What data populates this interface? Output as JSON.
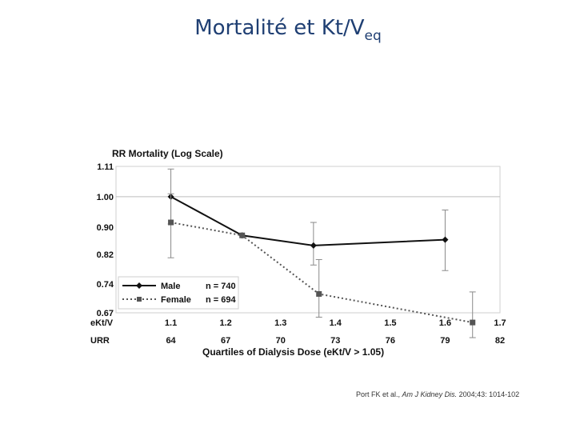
{
  "slide": {
    "title_main": "Mortalité et Kt/V",
    "title_sub": "eq"
  },
  "chart_data": {
    "type": "line",
    "title": "RR Mortality (Log Scale)",
    "xlabel": "Quartiles of Dialysis Dose (eKt/V > 1.05)",
    "ylabel": "RR Mortality (Log Scale)",
    "yscale": "log",
    "ylim": [
      0.67,
      1.11
    ],
    "yticks": [
      "1.11",
      "1.00",
      "0.90",
      "0.82",
      "0.74",
      "0.67"
    ],
    "ytick_values": [
      1.11,
      1.0,
      0.9,
      0.82,
      0.74,
      0.67
    ],
    "reference_line": 1.0,
    "xlim": [
      1.0,
      1.7
    ],
    "x_rows": [
      {
        "label": "eKt/V",
        "ticks": [
          "1.1",
          "1.2",
          "1.3",
          "1.4",
          "1.5",
          "1.6",
          "1.7"
        ]
      },
      {
        "label": "URR",
        "ticks": [
          "64",
          "67",
          "70",
          "73",
          "76",
          "79",
          "82"
        ]
      }
    ],
    "x_tick_values": [
      1.1,
      1.2,
      1.3,
      1.4,
      1.5,
      1.6,
      1.7
    ],
    "series": [
      {
        "name": "Male",
        "n_label": "n = 740",
        "style": "solid",
        "marker": "diamond",
        "color": "#111111",
        "x": [
          1.1,
          1.23,
          1.36,
          1.6
        ],
        "y": [
          1.0,
          0.875,
          0.845,
          0.862
        ],
        "ci_low": [
          0.91,
          null,
          0.79,
          0.775
        ],
        "ci_high": [
          1.1,
          null,
          0.915,
          0.955
        ]
      },
      {
        "name": "Female",
        "n_label": "n = 694",
        "style": "dotted",
        "marker": "square",
        "color": "#555555",
        "x": [
          1.1,
          1.23,
          1.37,
          1.65
        ],
        "y": [
          0.915,
          0.875,
          0.715,
          0.648
        ],
        "ci_low": [
          0.81,
          null,
          0.66,
          0.615
        ],
        "ci_high": [
          1.01,
          null,
          0.805,
          0.72
        ]
      }
    ],
    "legend_position": "bottom-left"
  },
  "citation": {
    "authors": "Port FK et al.,",
    "journal": "Am J Kidney Dis.",
    "details": "2004;43: 1014-102"
  }
}
